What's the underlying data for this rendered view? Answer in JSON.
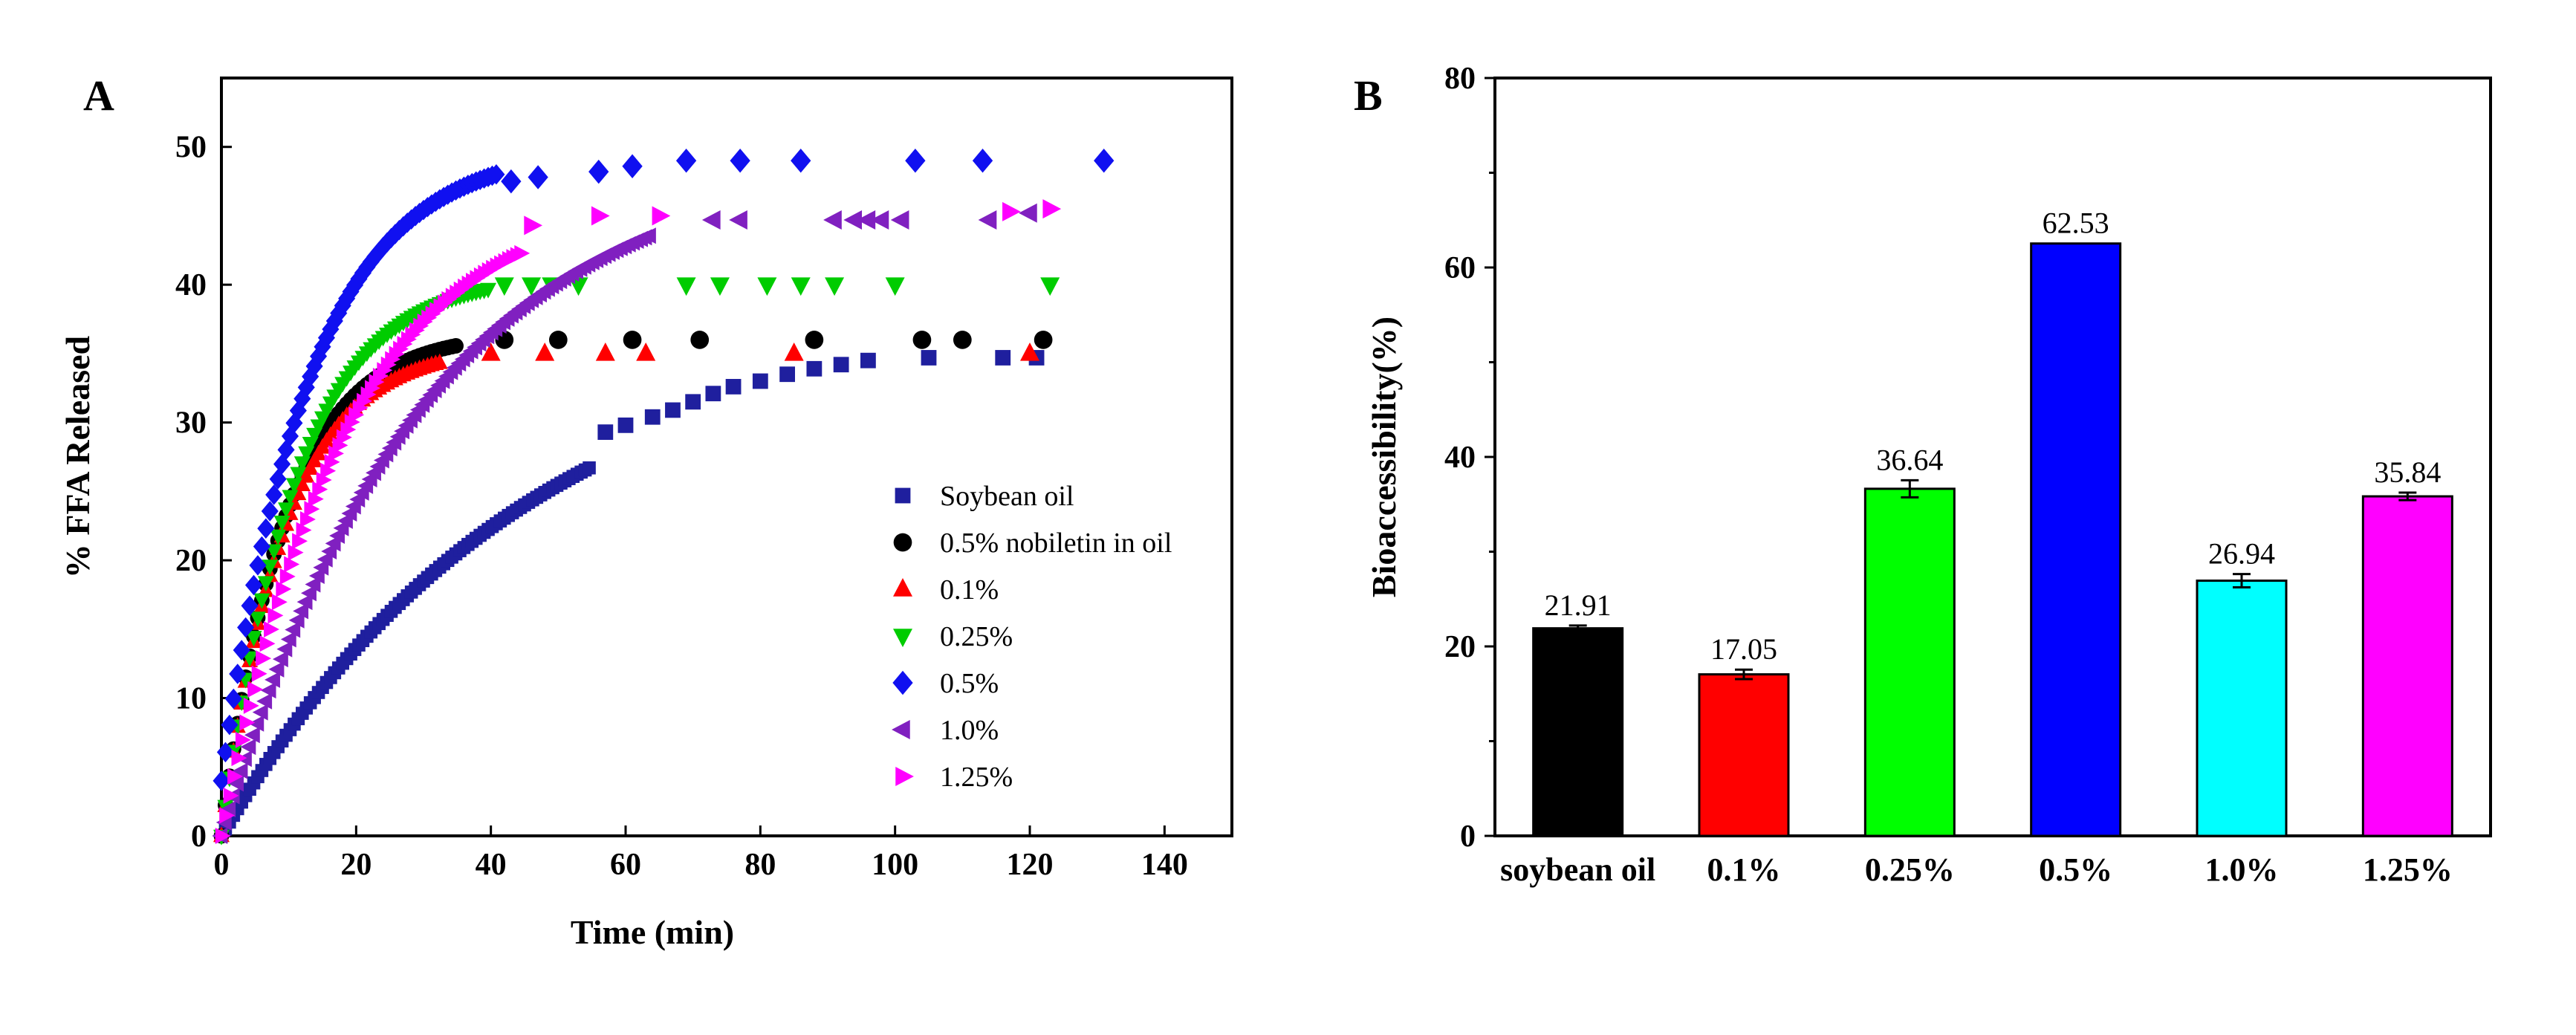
{
  "chart_data": [
    {
      "panel": "A",
      "type": "scatter",
      "title": "",
      "xlabel": "Time (min)",
      "ylabel": "% FFA Released",
      "xlim": [
        0,
        150
      ],
      "ylim": [
        0,
        55
      ],
      "xticks": [
        0,
        20,
        40,
        60,
        80,
        100,
        120,
        140
      ],
      "yticks": [
        0,
        10,
        20,
        30,
        40,
        50
      ],
      "legend_position": "lower-right",
      "series": [
        {
          "name": "Soybean oil",
          "marker": "square",
          "color": "#1f1f9e",
          "curve": {
            "kind": "saturating",
            "a": 38,
            "tau": 45,
            "offset": 0,
            "tmax": 55
          },
          "points": [
            [
              57,
              29.3
            ],
            [
              60,
              29.8
            ],
            [
              64,
              30.4
            ],
            [
              67,
              30.9
            ],
            [
              70,
              31.5
            ],
            [
              73,
              32.1
            ],
            [
              76,
              32.6
            ],
            [
              80,
              33.0
            ],
            [
              84,
              33.5
            ],
            [
              88,
              33.9
            ],
            [
              92,
              34.2
            ],
            [
              96,
              34.5
            ],
            [
              105,
              34.7
            ],
            [
              116,
              34.7
            ],
            [
              121,
              34.7
            ]
          ]
        },
        {
          "name": "0.5% nobiletin in oil",
          "marker": "circle",
          "color": "#000000",
          "curve": {
            "kind": "saturating",
            "a": 36.5,
            "tau": 9.5,
            "offset": 0,
            "tmax": 35
          },
          "points": [
            [
              42,
              36
            ],
            [
              50,
              36
            ],
            [
              61,
              36
            ],
            [
              71,
              36
            ],
            [
              88,
              36
            ],
            [
              104,
              36
            ],
            [
              110,
              36
            ],
            [
              122,
              36
            ]
          ]
        },
        {
          "name": "0.1%",
          "marker": "triangle-up",
          "color": "#ff0000",
          "curve": {
            "kind": "saturating",
            "a": 35.5,
            "tau": 9.5,
            "offset": 0,
            "tmax": 33
          },
          "points": [
            [
              40,
              35
            ],
            [
              48,
              35
            ],
            [
              57,
              35
            ],
            [
              63,
              35
            ],
            [
              85,
              35
            ],
            [
              120,
              35
            ]
          ]
        },
        {
          "name": "0.25%",
          "marker": "triangle-down",
          "color": "#00cc00",
          "curve": {
            "kind": "saturating",
            "a": 40.8,
            "tau": 11,
            "offset": 0,
            "tmax": 40
          },
          "points": [
            [
              42,
              40
            ],
            [
              46,
              40
            ],
            [
              49,
              40
            ],
            [
              53,
              40
            ],
            [
              69,
              40
            ],
            [
              74,
              40
            ],
            [
              81,
              40
            ],
            [
              86,
              40
            ],
            [
              91,
              40
            ],
            [
              100,
              40
            ],
            [
              123,
              40
            ]
          ]
        },
        {
          "name": "0.5%",
          "marker": "diamond",
          "color": "#1010f0",
          "curve": {
            "kind": "saturating",
            "a": 50,
            "tau": 13,
            "offset": 4,
            "tmax": 41
          },
          "points": [
            [
              43,
              47.5
            ],
            [
              47,
              47.8
            ],
            [
              56,
              48.2
            ],
            [
              61,
              48.6
            ],
            [
              69,
              49
            ],
            [
              77,
              49
            ],
            [
              86,
              49
            ],
            [
              103,
              49
            ],
            [
              113,
              49
            ],
            [
              131,
              49
            ]
          ]
        },
        {
          "name": "1.0%",
          "marker": "triangle-left",
          "color": "#8020c0",
          "curve": {
            "kind": "saturating",
            "a": 49.5,
            "tau": 30,
            "offset": 0,
            "tmax": 64
          },
          "points": [
            [
              73,
              44.7
            ],
            [
              77,
              44.7
            ],
            [
              91,
              44.7
            ],
            [
              94,
              44.7
            ],
            [
              96,
              44.7
            ],
            [
              98,
              44.7
            ],
            [
              101,
              44.7
            ],
            [
              114,
              44.7
            ],
            [
              120,
              45.2
            ]
          ]
        },
        {
          "name": "1.25%",
          "marker": "triangle-right",
          "color": "#ff00ff",
          "curve": {
            "kind": "saturating",
            "a": 46.5,
            "tau": 18.5,
            "offset": 0,
            "tmax": 45
          },
          "points": [
            [
              46,
              44.3
            ],
            [
              56,
              45
            ],
            [
              65,
              45
            ],
            [
              117,
              45.3
            ],
            [
              123,
              45.5
            ]
          ]
        }
      ]
    },
    {
      "panel": "B",
      "type": "bar",
      "title": "",
      "xlabel": "",
      "ylabel": "Bioaccessibility(%)",
      "ylim": [
        0,
        80
      ],
      "yticks": [
        0,
        20,
        40,
        60,
        80
      ],
      "categories": [
        "soybean oil",
        "0.1%",
        "0.25%",
        "0.5%",
        "1.0%",
        "1.25%"
      ],
      "values": [
        21.91,
        17.05,
        36.64,
        62.53,
        26.94,
        35.84
      ],
      "value_labels": [
        "21.91",
        "17.05",
        "36.64",
        "62.53",
        "26.94",
        "35.84"
      ],
      "errors": [
        0.3,
        0.5,
        0.9,
        0.0,
        0.7,
        0.4
      ],
      "colors": [
        "#000000",
        "#ff0000",
        "#00ff00",
        "#0000ff",
        "#00ffff",
        "#ff00ff"
      ]
    }
  ]
}
